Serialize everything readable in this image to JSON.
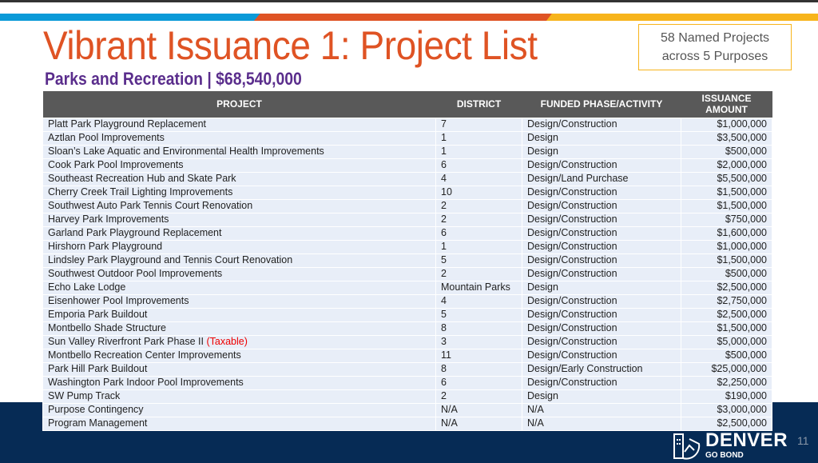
{
  "title": "Vibrant Issuance 1: Project List",
  "callout": {
    "line1": "58 Named Projects",
    "line2": "across 5 Purposes"
  },
  "subtitle": "Parks and Recreation | $68,540,000",
  "table": {
    "headers": [
      "PROJECT",
      "DISTRICT",
      "FUNDED PHASE/ACTIVITY",
      "ISSUANCE",
      "AMOUNT"
    ],
    "rows": [
      [
        "Platt Park Playground Replacement",
        "7",
        "Design/Construction",
        "$1,000,000",
        ""
      ],
      [
        "Aztlan Pool Improvements",
        "1",
        "Design",
        "$3,500,000",
        ""
      ],
      [
        "Sloan’s Lake Aquatic and Environmental Health Improvements",
        "1",
        "Design",
        "$500,000",
        ""
      ],
      [
        "Cook Park Pool Improvements",
        "6",
        "Design/Construction",
        "$2,000,000",
        ""
      ],
      [
        "Southeast Recreation Hub and Skate Park",
        "4",
        "Design/Land Purchase",
        "$5,500,000",
        ""
      ],
      [
        "Cherry Creek Trail Lighting Improvements",
        "10",
        "Design/Construction",
        "$1,500,000",
        ""
      ],
      [
        "Southwest Auto Park Tennis Court Renovation",
        "2",
        "Design/Construction",
        "$1,500,000",
        ""
      ],
      [
        "Harvey Park Improvements",
        "2",
        "Design/Construction",
        "$750,000",
        ""
      ],
      [
        "Garland Park Playground Replacement",
        "6",
        "Design/Construction",
        "$1,600,000",
        ""
      ],
      [
        "Hirshorn Park Playground",
        "1",
        "Design/Construction",
        "$1,000,000",
        ""
      ],
      [
        "Lindsley Park Playground and Tennis Court Renovation",
        "5",
        "Design/Construction",
        "$1,500,000",
        ""
      ],
      [
        "Southwest Outdoor Pool Improvements",
        "2",
        "Design/Construction",
        "$500,000",
        ""
      ],
      [
        "Echo Lake Lodge",
        "Mountain Parks",
        "Design",
        "$2,500,000",
        ""
      ],
      [
        "Eisenhower Pool Improvements",
        "4",
        "Design/Construction",
        "$2,750,000",
        ""
      ],
      [
        "Emporia Park Buildout",
        "5",
        "Design/Construction",
        "$2,500,000",
        ""
      ],
      [
        "Montbello Shade Structure",
        "8",
        "Design/Construction",
        "$1,500,000",
        ""
      ],
      [
        "Sun Valley Riverfront Park Phase II",
        "3",
        "Design/Construction",
        "$5,000,000",
        "(Taxable)"
      ],
      [
        "Montbello Recreation Center Improvements",
        "11",
        "Design/Construction",
        "$500,000",
        ""
      ],
      [
        "Park Hill Park Buildout",
        "8",
        "Design/Early Construction",
        "$25,000,000",
        ""
      ],
      [
        "Washington Park Indoor Pool Improvements",
        "6",
        "Design/Construction",
        "$2,250,000",
        ""
      ],
      [
        "SW Pump Track",
        "2",
        "Design",
        "$190,000",
        ""
      ],
      [
        "Purpose Contingency",
        "N/A",
        "N/A",
        "$3,000,000",
        ""
      ],
      [
        "Program Management",
        "N/A",
        "N/A",
        "$2,500,000",
        ""
      ]
    ]
  },
  "footer": {
    "logo_name": "DENVER",
    "logo_sub": "GO BOND",
    "page": "11"
  },
  "colors": {
    "orange": "#df5324",
    "purple": "#5a2d8c",
    "navy": "#062b55",
    "blue": "#0a9ad8",
    "gold": "#f7b41b"
  }
}
